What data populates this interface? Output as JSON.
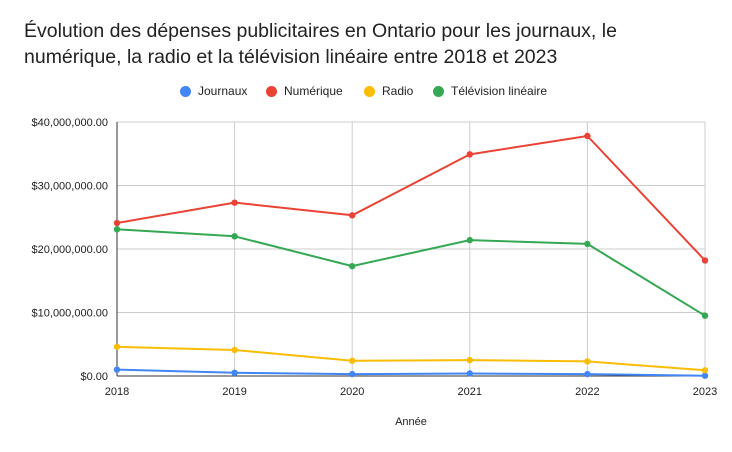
{
  "chart_data": {
    "type": "line",
    "title": "Évolution des dépenses publicitaires en Ontario pour les journaux, le numérique, la radio et la télévision linéaire entre 2018 et 2023",
    "xlabel": "Année",
    "ylabel": "",
    "x": [
      "2018",
      "2019",
      "2020",
      "2021",
      "2022",
      "2023"
    ],
    "ylim": [
      0,
      40000000
    ],
    "yticks": [
      0,
      10000000,
      20000000,
      30000000,
      40000000
    ],
    "ytick_labels": [
      "$0.00",
      "$10,000,000.00",
      "$20,000,000.00",
      "$30,000,000.00",
      "$40,000,000.00"
    ],
    "grid": true,
    "legend_position": "top",
    "series": [
      {
        "name": "Journaux",
        "color": "#4285f4",
        "values": [
          1000000,
          500000,
          300000,
          400000,
          300000,
          50000
        ]
      },
      {
        "name": "Numérique",
        "color": "#ea4335",
        "values": [
          24100000,
          27300000,
          25300000,
          34900000,
          37800000,
          18200000
        ]
      },
      {
        "name": "Radio",
        "color": "#fbbc04",
        "values": [
          4600000,
          4100000,
          2400000,
          2500000,
          2300000,
          900000
        ]
      },
      {
        "name": "Télévision linéaire",
        "color": "#34a853",
        "values": [
          23100000,
          22000000,
          17300000,
          21400000,
          20800000,
          9500000
        ]
      }
    ]
  }
}
